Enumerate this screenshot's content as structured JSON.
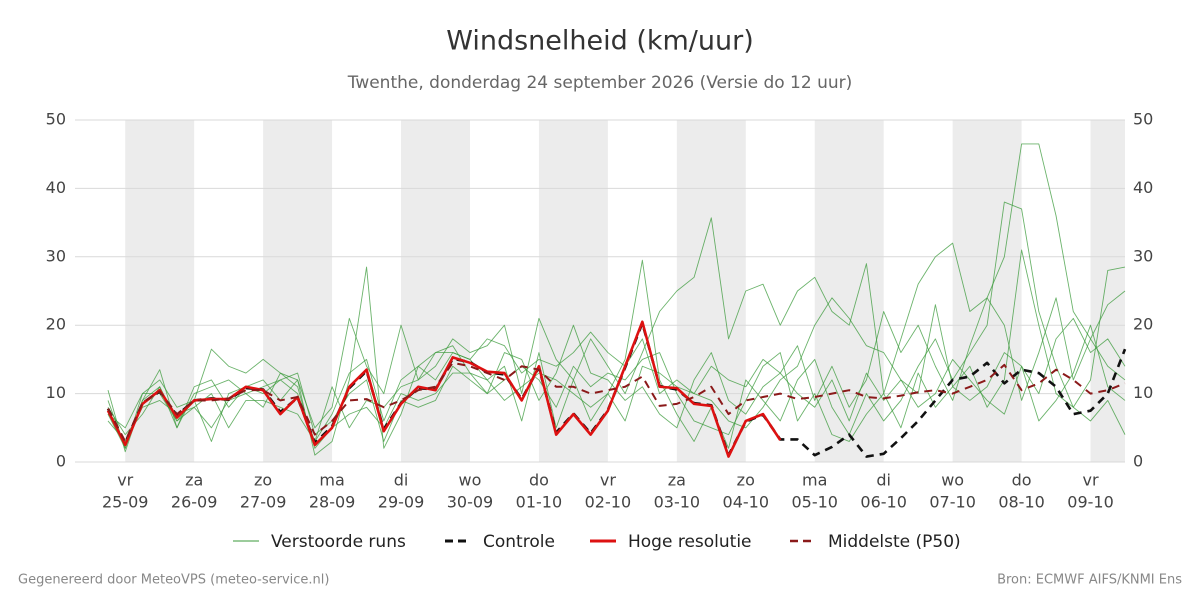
{
  "chart_data": {
    "type": "line",
    "title": "Windsnelheid (km/uur)",
    "subtitle": "Twenthe, donderdag 24 september 2026 (Versie do 12 uur)",
    "footer_left": "Gegenereerd door MeteoVPS (meteo-service.nl)",
    "footer_right": "Bron: ECMWF AIFS/KNMI Ens",
    "categories": [
      null,
      [
        "vr",
        "25-09"
      ],
      null,
      null,
      null,
      [
        "za",
        "26-09"
      ],
      null,
      null,
      null,
      [
        "zo",
        "27-09"
      ],
      null,
      null,
      null,
      [
        "ma",
        "28-09"
      ],
      null,
      null,
      null,
      [
        "di",
        "29-09"
      ],
      null,
      null,
      null,
      [
        "wo",
        "30-09"
      ],
      null,
      null,
      null,
      [
        "do",
        "01-10"
      ],
      null,
      null,
      null,
      [
        "vr",
        "02-10"
      ],
      null,
      null,
      null,
      [
        "za",
        "03-10"
      ],
      null,
      null,
      null,
      [
        "zo",
        "04-10"
      ],
      null,
      null,
      null,
      [
        "ma",
        "05-10"
      ],
      null,
      null,
      null,
      [
        "di",
        "06-10"
      ],
      null,
      null,
      null,
      [
        "wo",
        "07-10"
      ],
      null,
      null,
      null,
      [
        "do",
        "08-10"
      ],
      null,
      null,
      null,
      [
        "vr",
        "09-10"
      ],
      null,
      null
    ],
    "ylim": [
      0,
      50
    ],
    "yticks": [
      0,
      10,
      20,
      30,
      40,
      50
    ],
    "y2lim": [
      0,
      50
    ],
    "y2ticks": [
      0,
      10,
      20,
      30,
      40,
      50
    ],
    "grid": true,
    "legend": "bottom",
    "series": [
      {
        "name": "Verstoorde runs",
        "color": "#3a9a3a",
        "dash": false,
        "members": [
          [
            10.5,
            1.5,
            9,
            13.5,
            5,
            11,
            12,
            8,
            11,
            12,
            9,
            12,
            1,
            3,
            12,
            28.5,
            2,
            7,
            14,
            12,
            16,
            15,
            12,
            14,
            6,
            16,
            5,
            12,
            6,
            10,
            15,
            29.5,
            12,
            7,
            3,
            8,
            2,
            12,
            9,
            6,
            12,
            15,
            8,
            4,
            10,
            6,
            9,
            14,
            18,
            12,
            16,
            20,
            38,
            37,
            22,
            14,
            8,
            12,
            28,
            28.5
          ],
          [
            7,
            2,
            10,
            12,
            8,
            9,
            16.5,
            14,
            13,
            15,
            13,
            12,
            5,
            8,
            21,
            14,
            10,
            20,
            12,
            14,
            18,
            16,
            17,
            20,
            10,
            21,
            15,
            12,
            18,
            14,
            10,
            16,
            22,
            25,
            27,
            35.7,
            18,
            25,
            26,
            20,
            25,
            27,
            22,
            20,
            29,
            10,
            18,
            26,
            30,
            32,
            22,
            24,
            30,
            46.5,
            46.5,
            36,
            22,
            18,
            14,
            12
          ],
          [
            8,
            4,
            7,
            11,
            6,
            9,
            3,
            10,
            11,
            10,
            12,
            13,
            4,
            6,
            10,
            12,
            3,
            9,
            8,
            9,
            14,
            12,
            10,
            12,
            14,
            12,
            8,
            14,
            11,
            13,
            12,
            15,
            16,
            10,
            6,
            5,
            4,
            9,
            14,
            16,
            6,
            10,
            4,
            3,
            7,
            10,
            5,
            13,
            8,
            11,
            14,
            8,
            12,
            31,
            20,
            10,
            8,
            6,
            9,
            4
          ],
          [
            6,
            3,
            8,
            9,
            7,
            8,
            10,
            5,
            9,
            9,
            8,
            7,
            3,
            11,
            5,
            9,
            8,
            11,
            12,
            16,
            17,
            13,
            10,
            16,
            15,
            9,
            13,
            20,
            13,
            12,
            9,
            11,
            7,
            5,
            12,
            16,
            9,
            7,
            11,
            13,
            17,
            9,
            14,
            8,
            12,
            22,
            16,
            20,
            14,
            9,
            17,
            24,
            20,
            9,
            16,
            24,
            12,
            18,
            23,
            25
          ],
          [
            9,
            2,
            9,
            11,
            5,
            10,
            11,
            12,
            10,
            11,
            12,
            10,
            3,
            7,
            13,
            15,
            6,
            12,
            14,
            16,
            16,
            15,
            18,
            17,
            13,
            15,
            14,
            16,
            19,
            16,
            14,
            18,
            10,
            12,
            10,
            9,
            6,
            5,
            8,
            12,
            14,
            20,
            24,
            21,
            17,
            16,
            12,
            8,
            10,
            15,
            12,
            9,
            7,
            14,
            10,
            18,
            21,
            16,
            18,
            14
          ],
          [
            7,
            5,
            10,
            10,
            6,
            8,
            5,
            9,
            10,
            8,
            13,
            11,
            2,
            5,
            7,
            8,
            5,
            10,
            9,
            10,
            13,
            13,
            12,
            9,
            11,
            13,
            12,
            10,
            8,
            10,
            6,
            14,
            13,
            11,
            10,
            14,
            12,
            11,
            15,
            13,
            10,
            8,
            12,
            6,
            13,
            9,
            12,
            10,
            23,
            11,
            9,
            11,
            16,
            14,
            6,
            9,
            13,
            20,
            11,
            9
          ]
        ]
      },
      {
        "name": "Controle",
        "color": "#111111",
        "dash": true,
        "values": [
          7.8,
          2.8,
          8.6,
          10.3,
          6.8,
          9,
          9.3,
          9.1,
          10.8,
          10.6,
          7.3,
          9.4,
          2.8,
          5.2,
          10.8,
          13.3,
          4.8,
          8.6,
          10.8,
          10.6,
          15.1,
          14.6,
          13.1,
          12.8,
          9.2,
          13.8,
          4.3,
          7.1,
          4.2,
          7.6,
          13.8,
          20.3,
          11.1,
          10.6,
          8.6,
          8.3,
          1,
          5.9,
          6.9,
          3.3,
          3.3,
          1,
          2.2,
          4,
          0.8,
          1.2,
          3.5,
          6,
          9,
          12,
          12.5,
          14.5,
          11.5,
          13.5,
          13,
          11,
          7,
          7.5,
          10,
          16.5
        ]
      },
      {
        "name": "Hoge resolutie",
        "color": "#dd1111",
        "dash": false,
        "values": [
          7.5,
          2.5,
          8.5,
          10.5,
          6.5,
          9,
          9.2,
          9.2,
          11,
          10.5,
          7,
          9.5,
          2.5,
          5,
          11,
          13.5,
          4.5,
          8.5,
          11,
          10.5,
          15.3,
          14.5,
          13.2,
          13,
          9,
          14,
          4,
          7,
          4,
          7.5,
          14,
          20.5,
          11,
          10.8,
          8.5,
          8.2,
          0.8,
          6,
          7,
          3.2,
          null,
          null,
          null,
          null,
          null,
          null,
          null,
          null,
          null,
          null,
          null,
          null,
          null,
          null,
          null,
          null,
          null,
          null,
          null,
          null
        ]
      },
      {
        "name": "Middelste (P50)",
        "color": "#8b1a1a",
        "dash": true,
        "values": [
          7.8,
          3,
          8.7,
          10.3,
          7,
          9,
          9,
          9.3,
          10.5,
          10.5,
          9,
          9.5,
          4,
          6,
          9,
          9.2,
          8,
          9,
          10.5,
          11,
          14.5,
          14,
          13,
          12,
          14,
          13.5,
          11,
          11,
          10,
          10.5,
          11,
          12.5,
          8.2,
          8.5,
          9.5,
          11,
          7,
          9,
          9.5,
          10,
          9.2,
          9.5,
          10,
          10.5,
          9.5,
          9.3,
          9.7,
          10.2,
          10.5,
          10,
          11,
          12,
          14.2,
          10.5,
          11.5,
          13.5,
          12,
          10,
          10.5,
          11.5
        ]
      }
    ]
  }
}
